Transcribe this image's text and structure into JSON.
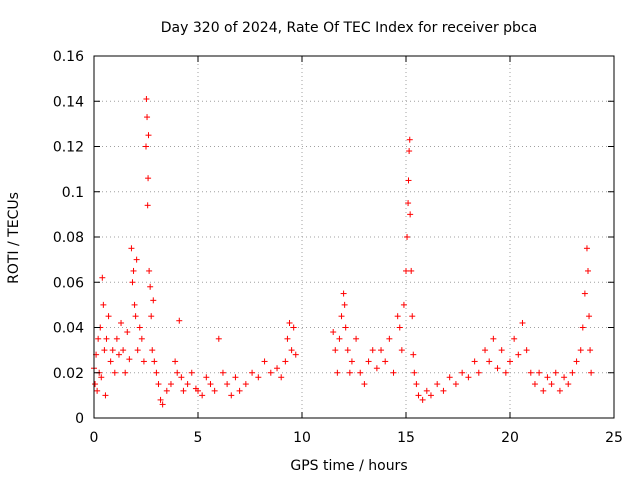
{
  "chart_data": {
    "type": "scatter",
    "title": "Day 320 of 2024, Rate Of TEC Index for receiver pbca",
    "xlabel": "GPS time / hours",
    "ylabel": "ROTI / TECUs",
    "xlim": [
      0,
      25
    ],
    "ylim": [
      0,
      0.16
    ],
    "x_ticks": [
      0,
      5,
      10,
      15,
      20,
      25
    ],
    "x_tick_labels": [
      "0",
      "5",
      "10",
      "15",
      "20",
      "25"
    ],
    "y_ticks": [
      0,
      0.02,
      0.04,
      0.06,
      0.08,
      0.1,
      0.12,
      0.14,
      0.16
    ],
    "y_tick_labels": [
      "0",
      "0.02",
      "0.04",
      "0.06",
      "0.08",
      "0.1",
      "0.12",
      "0.14",
      "0.16"
    ],
    "grid": true,
    "marker": "+",
    "color": "#ff0000",
    "series": [
      {
        "name": "ROTI",
        "points": [
          [
            0.0,
            0.022
          ],
          [
            0.05,
            0.015
          ],
          [
            0.1,
            0.028
          ],
          [
            0.15,
            0.012
          ],
          [
            0.2,
            0.035
          ],
          [
            0.25,
            0.02
          ],
          [
            0.3,
            0.04
          ],
          [
            0.35,
            0.018
          ],
          [
            0.4,
            0.062
          ],
          [
            0.45,
            0.05
          ],
          [
            0.5,
            0.03
          ],
          [
            0.55,
            0.01
          ],
          [
            0.6,
            0.035
          ],
          [
            0.7,
            0.045
          ],
          [
            0.8,
            0.025
          ],
          [
            0.9,
            0.03
          ],
          [
            1.0,
            0.02
          ],
          [
            1.1,
            0.035
          ],
          [
            1.2,
            0.028
          ],
          [
            1.3,
            0.042
          ],
          [
            1.4,
            0.03
          ],
          [
            1.5,
            0.02
          ],
          [
            1.6,
            0.038
          ],
          [
            1.7,
            0.026
          ],
          [
            1.8,
            0.075
          ],
          [
            1.85,
            0.06
          ],
          [
            1.9,
            0.065
          ],
          [
            1.95,
            0.05
          ],
          [
            2.0,
            0.045
          ],
          [
            2.05,
            0.07
          ],
          [
            2.1,
            0.03
          ],
          [
            2.2,
            0.04
          ],
          [
            2.3,
            0.035
          ],
          [
            2.4,
            0.025
          ],
          [
            2.5,
            0.12
          ],
          [
            2.52,
            0.141
          ],
          [
            2.55,
            0.133
          ],
          [
            2.58,
            0.094
          ],
          [
            2.6,
            0.106
          ],
          [
            2.62,
            0.125
          ],
          [
            2.65,
            0.065
          ],
          [
            2.7,
            0.058
          ],
          [
            2.75,
            0.045
          ],
          [
            2.8,
            0.03
          ],
          [
            2.85,
            0.052
          ],
          [
            2.9,
            0.025
          ],
          [
            3.0,
            0.02
          ],
          [
            3.1,
            0.015
          ],
          [
            3.2,
            0.008
          ],
          [
            3.3,
            0.006
          ],
          [
            3.5,
            0.012
          ],
          [
            3.7,
            0.015
          ],
          [
            3.9,
            0.025
          ],
          [
            4.0,
            0.02
          ],
          [
            4.1,
            0.043
          ],
          [
            4.2,
            0.018
          ],
          [
            4.3,
            0.012
          ],
          [
            4.5,
            0.015
          ],
          [
            4.7,
            0.02
          ],
          [
            4.9,
            0.013
          ],
          [
            5.0,
            0.012
          ],
          [
            5.2,
            0.01
          ],
          [
            5.4,
            0.018
          ],
          [
            5.6,
            0.015
          ],
          [
            5.8,
            0.012
          ],
          [
            6.0,
            0.035
          ],
          [
            6.2,
            0.02
          ],
          [
            6.4,
            0.015
          ],
          [
            6.6,
            0.01
          ],
          [
            6.8,
            0.018
          ],
          [
            7.0,
            0.012
          ],
          [
            7.3,
            0.015
          ],
          [
            7.6,
            0.02
          ],
          [
            7.9,
            0.018
          ],
          [
            8.2,
            0.025
          ],
          [
            8.5,
            0.02
          ],
          [
            8.8,
            0.022
          ],
          [
            9.0,
            0.018
          ],
          [
            9.2,
            0.025
          ],
          [
            9.3,
            0.035
          ],
          [
            9.4,
            0.042
          ],
          [
            9.5,
            0.03
          ],
          [
            9.6,
            0.04
          ],
          [
            9.7,
            0.028
          ],
          [
            11.5,
            0.038
          ],
          [
            11.6,
            0.03
          ],
          [
            11.7,
            0.02
          ],
          [
            11.8,
            0.035
          ],
          [
            11.9,
            0.045
          ],
          [
            12.0,
            0.055
          ],
          [
            12.05,
            0.05
          ],
          [
            12.1,
            0.04
          ],
          [
            12.2,
            0.03
          ],
          [
            12.3,
            0.02
          ],
          [
            12.4,
            0.025
          ],
          [
            12.6,
            0.035
          ],
          [
            12.8,
            0.02
          ],
          [
            13.0,
            0.015
          ],
          [
            13.2,
            0.025
          ],
          [
            13.4,
            0.03
          ],
          [
            13.6,
            0.022
          ],
          [
            13.8,
            0.03
          ],
          [
            14.0,
            0.025
          ],
          [
            14.2,
            0.035
          ],
          [
            14.4,
            0.02
          ],
          [
            14.6,
            0.045
          ],
          [
            14.7,
            0.04
          ],
          [
            14.8,
            0.03
          ],
          [
            14.9,
            0.05
          ],
          [
            15.0,
            0.065
          ],
          [
            15.05,
            0.08
          ],
          [
            15.1,
            0.095
          ],
          [
            15.12,
            0.105
          ],
          [
            15.15,
            0.118
          ],
          [
            15.18,
            0.123
          ],
          [
            15.2,
            0.09
          ],
          [
            15.25,
            0.065
          ],
          [
            15.3,
            0.045
          ],
          [
            15.35,
            0.028
          ],
          [
            15.4,
            0.02
          ],
          [
            15.5,
            0.015
          ],
          [
            15.6,
            0.01
          ],
          [
            15.8,
            0.008
          ],
          [
            16.0,
            0.012
          ],
          [
            16.2,
            0.01
          ],
          [
            16.5,
            0.015
          ],
          [
            16.8,
            0.012
          ],
          [
            17.1,
            0.018
          ],
          [
            17.4,
            0.015
          ],
          [
            17.7,
            0.02
          ],
          [
            18.0,
            0.018
          ],
          [
            18.3,
            0.025
          ],
          [
            18.5,
            0.02
          ],
          [
            18.8,
            0.03
          ],
          [
            19.0,
            0.025
          ],
          [
            19.2,
            0.035
          ],
          [
            19.4,
            0.022
          ],
          [
            19.6,
            0.03
          ],
          [
            19.8,
            0.02
          ],
          [
            20.0,
            0.025
          ],
          [
            20.2,
            0.035
          ],
          [
            20.4,
            0.028
          ],
          [
            20.6,
            0.042
          ],
          [
            20.8,
            0.03
          ],
          [
            21.0,
            0.02
          ],
          [
            21.2,
            0.015
          ],
          [
            21.4,
            0.02
          ],
          [
            21.6,
            0.012
          ],
          [
            21.8,
            0.018
          ],
          [
            22.0,
            0.015
          ],
          [
            22.2,
            0.02
          ],
          [
            22.4,
            0.012
          ],
          [
            22.6,
            0.018
          ],
          [
            22.8,
            0.015
          ],
          [
            23.0,
            0.02
          ],
          [
            23.2,
            0.025
          ],
          [
            23.4,
            0.03
          ],
          [
            23.5,
            0.04
          ],
          [
            23.6,
            0.055
          ],
          [
            23.7,
            0.075
          ],
          [
            23.75,
            0.065
          ],
          [
            23.8,
            0.045
          ],
          [
            23.85,
            0.03
          ],
          [
            23.9,
            0.02
          ]
        ]
      }
    ]
  }
}
